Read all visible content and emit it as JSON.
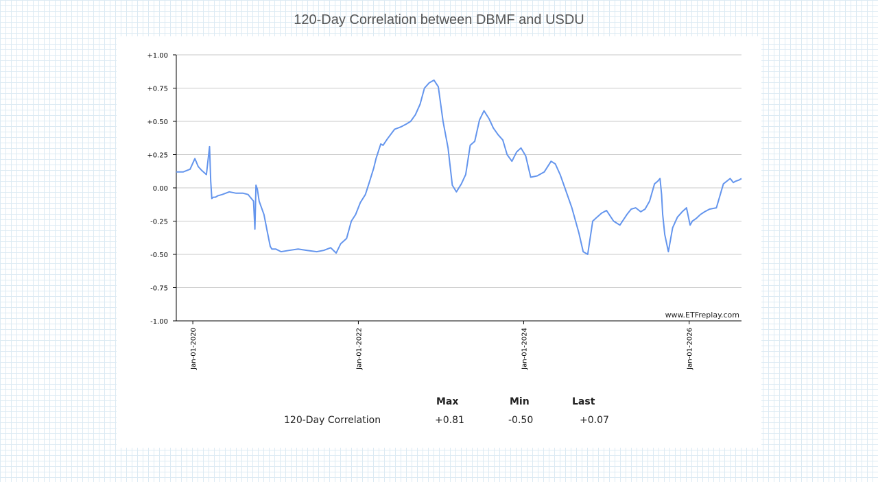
{
  "page": {
    "title": "120-Day Correlation between DBMF and USDU"
  },
  "chart_data": {
    "type": "line",
    "title": "120-Day Correlation between DBMF and USDU",
    "xlabel": "",
    "ylabel": "",
    "ylim": [
      -1.0,
      1.0
    ],
    "yticks": [
      "+1.00",
      "+0.75",
      "+0.50",
      "+0.25",
      "0.00",
      "-0.25",
      "-0.50",
      "-0.75",
      "-1.00"
    ],
    "ytick_values": [
      1.0,
      0.75,
      0.5,
      0.25,
      0.0,
      -0.25,
      -0.5,
      -0.75,
      -1.0
    ],
    "xlim": [
      "2019-10-20",
      "2026-08-20"
    ],
    "xticks": [
      "Jan-01-2020",
      "Jan-01-2022",
      "Jan-01-2024",
      "Jan-01-2026"
    ],
    "xtick_dates": [
      "2020-01-01",
      "2022-01-01",
      "2024-01-01",
      "2026-01-01"
    ],
    "grid": "horizontal",
    "line_color": "#6495ed",
    "watermark": "www.ETFreplay.com",
    "series": [
      {
        "name": "120-Day Correlation",
        "x": [
          "2019-10-20",
          "2019-11-20",
          "2019-12-20",
          "2020-01-10",
          "2020-01-25",
          "2020-02-10",
          "2020-03-01",
          "2020-03-15",
          "2020-03-20",
          "2020-03-25",
          "2020-04-01",
          "2020-04-10",
          "2020-04-20",
          "2020-05-10",
          "2020-06-10",
          "2020-07-10",
          "2020-08-10",
          "2020-09-01",
          "2020-09-25",
          "2020-10-01",
          "2020-10-06",
          "2020-10-12",
          "2020-10-20",
          "2020-11-10",
          "2020-11-25",
          "2020-12-08",
          "2020-12-15",
          "2021-01-01",
          "2021-01-25",
          "2021-03-01",
          "2021-04-10",
          "2021-05-20",
          "2021-07-01",
          "2021-08-01",
          "2021-09-01",
          "2021-09-25",
          "2021-10-15",
          "2021-11-10",
          "2021-12-01",
          "2021-12-20",
          "2022-01-10",
          "2022-02-01",
          "2022-02-20",
          "2022-03-10",
          "2022-03-20",
          "2022-04-10",
          "2022-04-20",
          "2022-05-10",
          "2022-06-10",
          "2022-07-10",
          "2022-08-01",
          "2022-08-20",
          "2022-09-10",
          "2022-10-01",
          "2022-10-20",
          "2022-11-10",
          "2022-12-01",
          "2022-12-20",
          "2023-01-10",
          "2023-02-01",
          "2023-02-20",
          "2023-03-10",
          "2023-04-01",
          "2023-04-20",
          "2023-05-10",
          "2023-05-30",
          "2023-06-20",
          "2023-07-10",
          "2023-08-01",
          "2023-08-20",
          "2023-09-10",
          "2023-10-01",
          "2023-10-20",
          "2023-11-10",
          "2023-12-01",
          "2023-12-20",
          "2024-01-10",
          "2024-02-01",
          "2024-03-01",
          "2024-04-01",
          "2024-05-01",
          "2024-05-20",
          "2024-06-10",
          "2024-07-01",
          "2024-08-01",
          "2024-09-01",
          "2024-09-20",
          "2024-10-10",
          "2024-11-01",
          "2024-11-20",
          "2024-12-10",
          "2025-01-01",
          "2025-02-01",
          "2025-03-01",
          "2025-04-01",
          "2025-04-20",
          "2025-05-10",
          "2025-06-01",
          "2025-06-20",
          "2025-07-10",
          "2025-08-01",
          "2025-08-15",
          "2025-08-25",
          "2025-09-01",
          "2025-09-06",
          "2025-09-15",
          "2025-10-01",
          "2025-10-20",
          "2025-11-10",
          "2025-12-01",
          "2025-12-20",
          "2026-01-05",
          "2026-01-15",
          "2026-02-01",
          "2026-02-20",
          "2026-03-10",
          "2026-04-01",
          "2026-05-01",
          "2026-06-01",
          "2026-07-01",
          "2026-07-15",
          "2026-07-25",
          "2026-08-10",
          "2026-08-20"
        ],
        "y": [
          0.12,
          0.12,
          0.14,
          0.22,
          0.16,
          0.13,
          0.1,
          0.31,
          0.05,
          -0.08,
          -0.07,
          -0.07,
          -0.06,
          -0.05,
          -0.03,
          -0.04,
          -0.04,
          -0.05,
          -0.1,
          -0.31,
          0.02,
          -0.01,
          -0.1,
          -0.2,
          -0.33,
          -0.44,
          -0.46,
          -0.46,
          -0.48,
          -0.47,
          -0.46,
          -0.47,
          -0.48,
          -0.47,
          -0.45,
          -0.49,
          -0.42,
          -0.38,
          -0.25,
          -0.2,
          -0.11,
          -0.05,
          0.05,
          0.15,
          0.22,
          0.33,
          0.32,
          0.37,
          0.44,
          0.46,
          0.48,
          0.5,
          0.55,
          0.63,
          0.75,
          0.79,
          0.81,
          0.76,
          0.5,
          0.3,
          0.02,
          -0.03,
          0.03,
          0.1,
          0.32,
          0.35,
          0.51,
          0.58,
          0.52,
          0.45,
          0.4,
          0.36,
          0.25,
          0.2,
          0.27,
          0.3,
          0.24,
          0.08,
          0.09,
          0.12,
          0.2,
          0.18,
          0.1,
          0.0,
          -0.15,
          -0.34,
          -0.48,
          -0.5,
          -0.25,
          -0.22,
          -0.19,
          -0.17,
          -0.25,
          -0.28,
          -0.2,
          -0.16,
          -0.15,
          -0.18,
          -0.16,
          -0.1,
          0.03,
          0.05,
          0.07,
          -0.05,
          -0.2,
          -0.35,
          -0.48,
          -0.3,
          -0.22,
          -0.18,
          -0.15,
          -0.28,
          -0.25,
          -0.23,
          -0.2,
          -0.18,
          -0.16,
          -0.15,
          0.03,
          0.07,
          0.04,
          0.05,
          0.06,
          0.07
        ]
      }
    ]
  },
  "stats": {
    "headers": [
      "Max",
      "Min",
      "Last"
    ],
    "rows": [
      {
        "label": "120-Day Correlation",
        "max": "+0.81",
        "min": "-0.50",
        "last": "+0.07"
      }
    ]
  }
}
